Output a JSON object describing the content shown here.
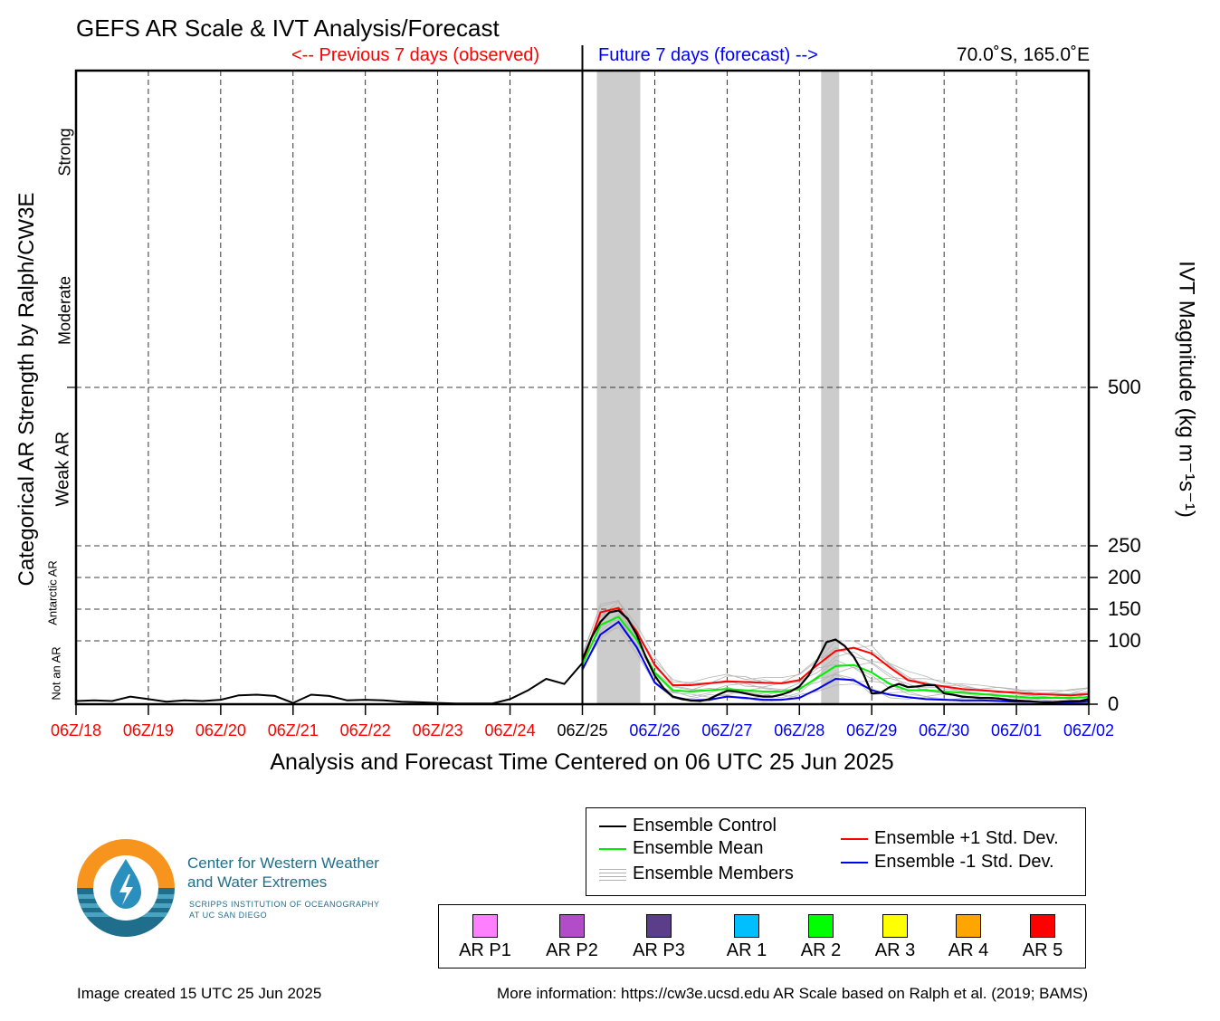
{
  "title": "GEFS AR Scale & IVT Analysis/Forecast",
  "observed_label": "<-- Previous 7 days (observed)",
  "forecast_label": "Future 7 days (forecast) -->",
  "location": "70.0˚S, 165.0˚E",
  "left_axis_title": "Categorical AR Strength by Ralph/CW3E",
  "right_axis_title": "IVT Magnitude (kg m⁻¹s⁻¹)",
  "x_axis_title": "Analysis and Forecast Time Centered on 06 UTC 25 Jun 2025",
  "categories": [
    "Strong",
    "Moderate",
    "Weak AR",
    "Antarctic AR",
    "Not an AR"
  ],
  "colors": {
    "observed": "#ff0000",
    "analysis": "#000000",
    "forecast": "#0000ff",
    "control": "#000000",
    "mean": "#00ee00",
    "plus_std": "#ff0000",
    "minus_std": "#0000ee",
    "members": "#b4b4b4",
    "shading": "#cccccc"
  },
  "legend": {
    "control": "Ensemble Control",
    "mean": "Ensemble Mean",
    "members": "Ensemble Members",
    "plus_std": "Ensemble +1 Std. Dev.",
    "minus_std": "Ensemble -1 Std. Dev."
  },
  "ar_scale": [
    {
      "label": "AR P1",
      "color": "#ff80ff"
    },
    {
      "label": "AR P2",
      "color": "#b24cc8"
    },
    {
      "label": "AR P3",
      "color": "#5a3e8a"
    },
    {
      "label": "AR 1",
      "color": "#00bfff"
    },
    {
      "label": "AR 2",
      "color": "#00ff00"
    },
    {
      "label": "AR 3",
      "color": "#ffff00"
    },
    {
      "label": "AR 4",
      "color": "#ffa500"
    },
    {
      "label": "AR 5",
      "color": "#ff0000"
    }
  ],
  "logo": {
    "line1": "Center for Western Weather",
    "line2": "and Water Extremes",
    "line3": "SCRIPPS INSTITUTION OF OCEANOGRAPHY",
    "line4": "AT UC SAN DIEGO"
  },
  "footer_left": "Image created 15 UTC 25 Jun 2025",
  "footer_right": "More information: https://cw3e.ucsd.edu AR Scale based on Ralph et al. (2019; BAMS)",
  "chart_data": {
    "type": "line",
    "x_ticks": [
      "06Z/18",
      "06Z/19",
      "06Z/20",
      "06Z/21",
      "06Z/22",
      "06Z/23",
      "06Z/24",
      "06Z/25",
      "06Z/26",
      "06Z/27",
      "06Z/28",
      "06Z/29",
      "06Z/30",
      "06Z/01",
      "06Z/02"
    ],
    "x_tick_groups": [
      "observed",
      "observed",
      "observed",
      "observed",
      "observed",
      "observed",
      "observed",
      "analysis",
      "forecast",
      "forecast",
      "forecast",
      "forecast",
      "forecast",
      "forecast",
      "forecast"
    ],
    "x_unit": "days from 06Z/18",
    "xlim": [
      0,
      14
    ],
    "y_ticks": [
      0,
      100,
      150,
      200,
      250,
      500
    ],
    "ylim": [
      0,
      1000
    ],
    "y_gridlines": [
      100,
      150,
      200,
      250,
      500
    ],
    "xlabel": "Analysis and Forecast Time Centered on 06 UTC 25 Jun 2025",
    "ylabel": "IVT Magnitude (kg m⁻¹s⁻¹)",
    "shaded_periods": [
      [
        7.2,
        7.8
      ],
      [
        10.3,
        10.55
      ]
    ],
    "observed": {
      "x": [
        0,
        0.25,
        0.5,
        0.75,
        1,
        1.25,
        1.5,
        1.75,
        2,
        2.25,
        2.5,
        2.75,
        3,
        3.25,
        3.5,
        3.75,
        4,
        4.25,
        4.5,
        4.75,
        5,
        5.25,
        5.5,
        5.75,
        6,
        6.25,
        6.5,
        6.75,
        7
      ],
      "y": [
        5,
        6,
        5,
        12,
        8,
        4,
        6,
        5,
        7,
        14,
        15,
        13,
        2,
        15,
        13,
        6,
        7,
        6,
        4,
        3,
        2,
        1,
        1,
        1,
        8,
        22,
        40,
        32,
        65
      ]
    },
    "series": [
      {
        "name": "Ensemble Control",
        "x": [
          7,
          7.125,
          7.25,
          7.375,
          7.5,
          7.625,
          7.75,
          7.875,
          8,
          8.125,
          8.25,
          8.375,
          8.5,
          8.625,
          8.75,
          8.875,
          9,
          9.125,
          9.25,
          9.375,
          9.5,
          9.625,
          9.75,
          9.875,
          10,
          10.125,
          10.25,
          10.375,
          10.5,
          10.625,
          10.75,
          10.875,
          11,
          11.125,
          11.25,
          11.375,
          11.5,
          11.625,
          11.75,
          11.875,
          12,
          12.125,
          12.25,
          12.375,
          12.5,
          12.625,
          12.75,
          12.875,
          13,
          13.125,
          13.25,
          13.375,
          13.5,
          13.625,
          13.75,
          13.875,
          14
        ],
        "y": [
          70,
          105,
          130,
          145,
          148,
          135,
          110,
          75,
          45,
          25,
          12,
          8,
          6,
          5,
          8,
          15,
          21,
          20,
          17,
          14,
          12,
          12,
          15,
          20,
          28,
          45,
          70,
          98,
          102,
          92,
          75,
          50,
          17,
          18,
          27,
          32,
          27,
          28,
          30,
          30,
          17,
          15,
          12,
          11,
          10,
          10,
          9,
          7,
          6,
          5,
          4,
          3,
          3,
          4,
          5,
          5,
          8
        ]
      },
      {
        "name": "Ensemble Mean",
        "x": [
          7,
          7.25,
          7.5,
          7.75,
          8,
          8.25,
          8.5,
          8.75,
          9,
          9.25,
          9.5,
          9.75,
          10,
          10.25,
          10.5,
          10.75,
          11,
          11.25,
          11.5,
          11.75,
          12,
          12.25,
          12.5,
          12.75,
          13,
          13.25,
          13.5,
          13.75,
          14
        ],
        "y": [
          62,
          125,
          138,
          102,
          50,
          22,
          20,
          22,
          24,
          22,
          20,
          20,
          24,
          42,
          60,
          62,
          50,
          32,
          22,
          22,
          20,
          18,
          16,
          14,
          12,
          10,
          10,
          10,
          11
        ]
      },
      {
        "name": "Ensemble +1 Std. Dev.",
        "x": [
          7,
          7.25,
          7.5,
          7.75,
          8,
          8.25,
          8.5,
          8.75,
          9,
          9.25,
          9.5,
          9.75,
          10,
          10.25,
          10.5,
          10.75,
          11,
          11.25,
          11.5,
          11.75,
          12,
          12.25,
          12.5,
          12.75,
          13,
          13.25,
          13.5,
          13.75,
          14
        ],
        "y": [
          65,
          145,
          152,
          115,
          62,
          30,
          30,
          33,
          36,
          35,
          34,
          33,
          38,
          62,
          84,
          89,
          80,
          58,
          38,
          32,
          28,
          24,
          22,
          20,
          18,
          16,
          15,
          14,
          16
        ]
      },
      {
        "name": "Ensemble -1 Std. Dev.",
        "x": [
          7,
          7.25,
          7.5,
          7.75,
          8,
          8.25,
          8.5,
          8.75,
          9,
          9.25,
          9.5,
          9.75,
          10,
          10.25,
          10.5,
          10.75,
          11,
          11.25,
          11.5,
          11.75,
          12,
          12.25,
          12.5,
          12.75,
          13,
          13.25,
          13.5,
          13.75,
          14
        ],
        "y": [
          55,
          110,
          130,
          90,
          34,
          12,
          6,
          7,
          12,
          10,
          7,
          7,
          10,
          24,
          40,
          38,
          22,
          15,
          11,
          8,
          7,
          6,
          6,
          5,
          4,
          4,
          3,
          3,
          4
        ]
      }
    ],
    "members_range": {
      "x": [
        7,
        7.25,
        7.5,
        7.75,
        8,
        8.25,
        8.5,
        8.75,
        9,
        9.25,
        9.5,
        9.75,
        10,
        10.25,
        10.5,
        10.75,
        11,
        11.25,
        11.5,
        11.75,
        12,
        12.25,
        12.5,
        12.75,
        13,
        13.25,
        13.5,
        13.75,
        14
      ],
      "low": [
        50,
        100,
        120,
        80,
        28,
        8,
        4,
        5,
        8,
        6,
        4,
        5,
        8,
        18,
        30,
        25,
        12,
        10,
        8,
        6,
        5,
        4,
        4,
        3,
        3,
        3,
        2,
        2,
        3
      ],
      "high": [
        80,
        160,
        170,
        125,
        75,
        40,
        38,
        42,
        48,
        46,
        44,
        42,
        50,
        78,
        100,
        100,
        95,
        72,
        52,
        44,
        38,
        34,
        30,
        28,
        26,
        22,
        22,
        24,
        30
      ]
    }
  }
}
